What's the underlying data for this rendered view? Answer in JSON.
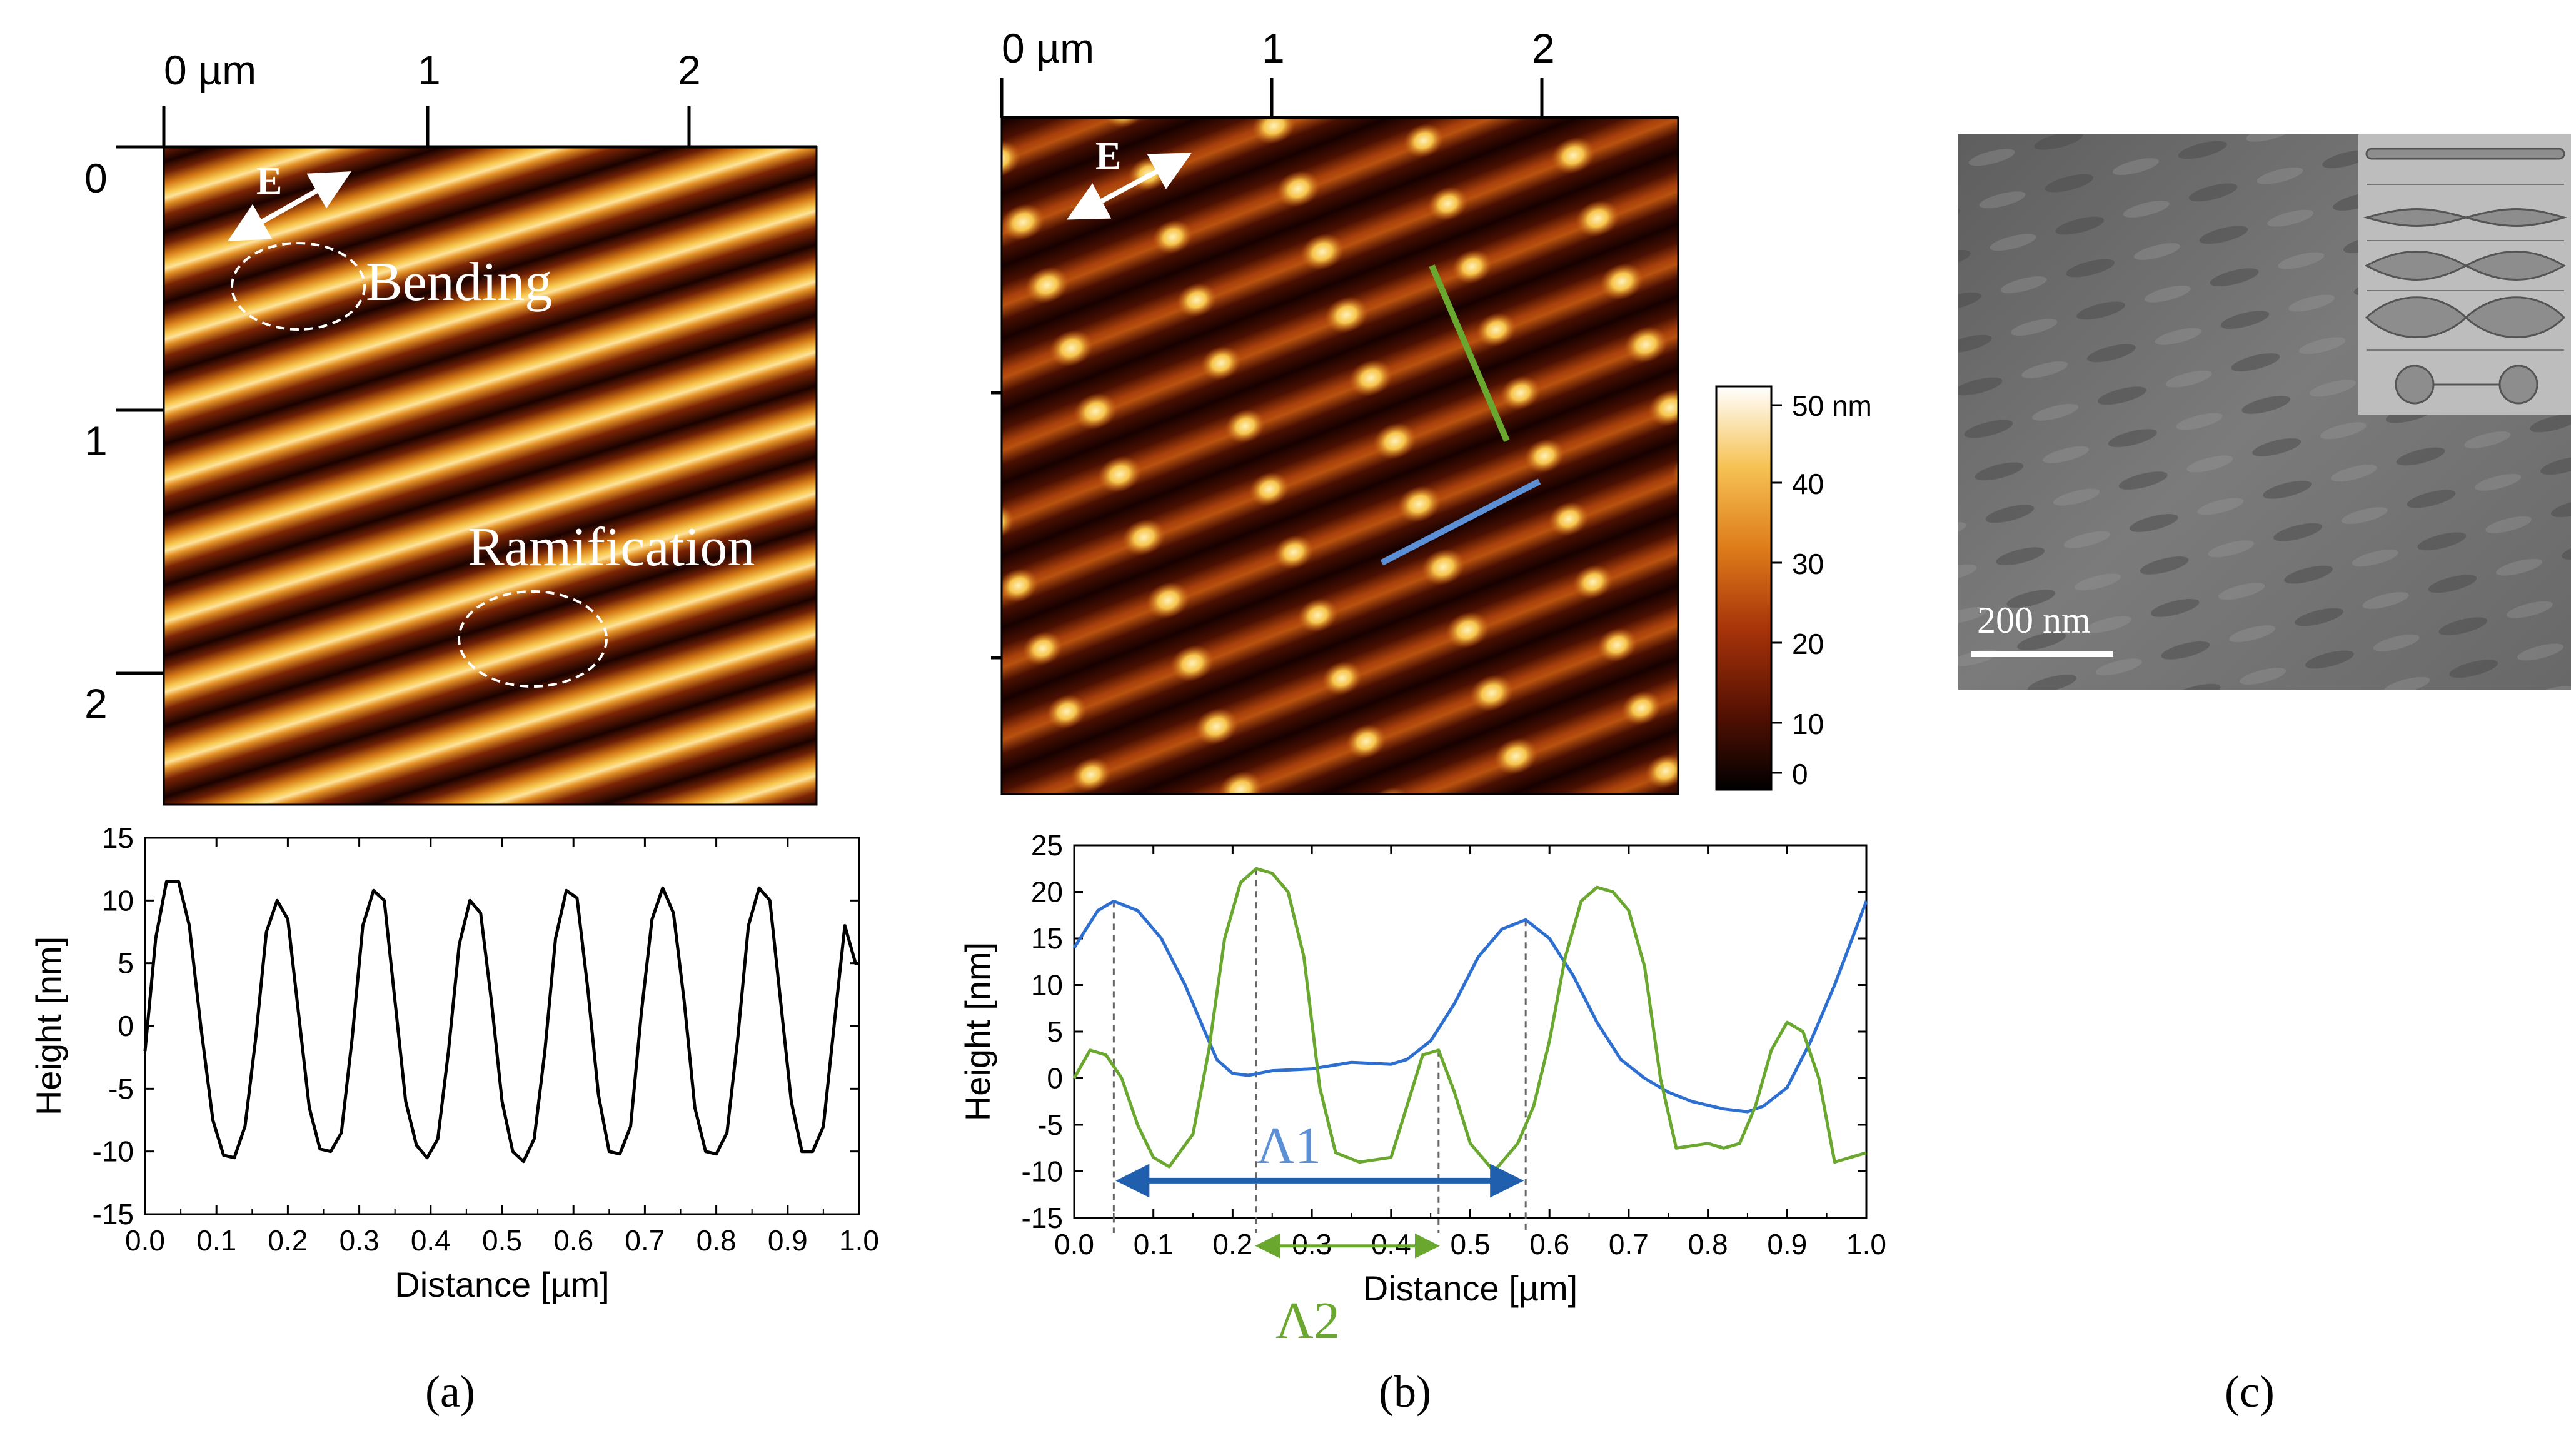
{
  "panel_a": {
    "afm": {
      "axis_top_ticks": [
        "0 µm",
        "1",
        "2"
      ],
      "axis_left_ticks": [
        "0",
        "1",
        "2"
      ],
      "field_label": "E",
      "annotations": [
        "Bending",
        "Ramification"
      ]
    },
    "caption": "(a)"
  },
  "panel_b": {
    "afm": {
      "axis_top_ticks": [
        "0 µm",
        "1",
        "2"
      ],
      "field_label": "E",
      "colorbar_ticks": [
        "50 nm",
        "40",
        "30",
        "20",
        "10",
        "0"
      ]
    },
    "caption": "(b)"
  },
  "panel_c": {
    "scalebar_label": "200 nm",
    "caption": "(c)"
  },
  "chart_data": [
    {
      "type": "line",
      "panel": "a",
      "xlabel": "Distance [µm]",
      "ylabel": "Height [nm]",
      "xlim": [
        0.0,
        1.0
      ],
      "ylim": [
        -15,
        15
      ],
      "xticks": [
        "0.0",
        "0.1",
        "0.2",
        "0.3",
        "0.4",
        "0.5",
        "0.6",
        "0.7",
        "0.8",
        "0.9",
        "1.0"
      ],
      "yticks": [
        "15",
        "10",
        "5",
        "0",
        "-5",
        "-10",
        "-15"
      ],
      "series": [
        {
          "name": "profile",
          "color": "#000000",
          "x": [
            0.0,
            0.015,
            0.03,
            0.047,
            0.062,
            0.078,
            0.095,
            0.11,
            0.125,
            0.14,
            0.155,
            0.17,
            0.185,
            0.2,
            0.215,
            0.23,
            0.245,
            0.26,
            0.275,
            0.29,
            0.305,
            0.32,
            0.335,
            0.35,
            0.365,
            0.38,
            0.395,
            0.41,
            0.425,
            0.44,
            0.455,
            0.47,
            0.485,
            0.5,
            0.515,
            0.53,
            0.545,
            0.56,
            0.575,
            0.59,
            0.605,
            0.62,
            0.635,
            0.65,
            0.665,
            0.68,
            0.695,
            0.71,
            0.725,
            0.74,
            0.755,
            0.77,
            0.785,
            0.8,
            0.815,
            0.83,
            0.845,
            0.86,
            0.875,
            0.89,
            0.905,
            0.92,
            0.935,
            0.95,
            0.965,
            0.98,
            0.995,
            1.0
          ],
          "y": [
            -2,
            7,
            11.5,
            11.5,
            8,
            0,
            -7.5,
            -10.3,
            -10.5,
            -8,
            -1,
            7.5,
            10,
            8.5,
            1,
            -6.5,
            -9.8,
            -10,
            -8.5,
            -1,
            8,
            10.8,
            10,
            2,
            -6,
            -9.5,
            -10.5,
            -9,
            -2,
            6.5,
            10,
            9,
            2,
            -6,
            -10,
            -10.8,
            -9,
            -2,
            7,
            10.8,
            10.2,
            3,
            -5.5,
            -10,
            -10.2,
            -8,
            1,
            8.5,
            11,
            9,
            2,
            -6.5,
            -10,
            -10.2,
            -8.5,
            -1,
            8,
            11,
            10,
            2,
            -6,
            -10,
            -10,
            -8,
            0,
            8,
            5,
            5
          ]
        }
      ]
    },
    {
      "type": "line",
      "panel": "b",
      "xlabel": "Distance [µm]",
      "ylabel": "Height [nm]",
      "xlim": [
        0.0,
        1.0
      ],
      "ylim": [
        -15,
        25
      ],
      "xticks": [
        "0.0",
        "0.1",
        "0.2",
        "0.3",
        "0.4",
        "0.5",
        "0.6",
        "0.7",
        "0.8",
        "0.9",
        "1.0"
      ],
      "yticks": [
        "25",
        "20",
        "15",
        "10",
        "5",
        "0",
        "-5",
        "-10",
        "-15"
      ],
      "annotations": [
        {
          "label": "Λ1",
          "from": 0.05,
          "to": 0.57,
          "y": -11,
          "color": "#1f5fae"
        },
        {
          "label": "Λ2",
          "from": 0.23,
          "to": 0.46,
          "y": -18,
          "color": "#6aa72f"
        }
      ],
      "series": [
        {
          "name": "blue",
          "color": "#2d6fd1",
          "x": [
            0.0,
            0.03,
            0.05,
            0.08,
            0.11,
            0.14,
            0.16,
            0.18,
            0.2,
            0.22,
            0.25,
            0.3,
            0.35,
            0.4,
            0.42,
            0.45,
            0.48,
            0.51,
            0.54,
            0.57,
            0.6,
            0.63,
            0.66,
            0.69,
            0.72,
            0.75,
            0.78,
            0.82,
            0.85,
            0.87,
            0.9,
            0.93,
            0.96,
            1.0
          ],
          "y": [
            14,
            18,
            19,
            18,
            15,
            10,
            6,
            2,
            0.5,
            0.3,
            0.8,
            1,
            1.7,
            1.5,
            2,
            4,
            8,
            13,
            16,
            17,
            15,
            11,
            6,
            2,
            0,
            -1.5,
            -2.5,
            -3.3,
            -3.6,
            -3,
            -1,
            4,
            10,
            19
          ]
        },
        {
          "name": "green",
          "color": "#6aa72f",
          "x": [
            0.0,
            0.02,
            0.04,
            0.06,
            0.08,
            0.1,
            0.12,
            0.15,
            0.17,
            0.19,
            0.21,
            0.23,
            0.25,
            0.27,
            0.29,
            0.31,
            0.33,
            0.36,
            0.4,
            0.42,
            0.44,
            0.46,
            0.48,
            0.5,
            0.53,
            0.56,
            0.58,
            0.6,
            0.62,
            0.64,
            0.66,
            0.68,
            0.7,
            0.72,
            0.74,
            0.76,
            0.8,
            0.82,
            0.84,
            0.86,
            0.88,
            0.9,
            0.92,
            0.94,
            0.96,
            1.0
          ],
          "y": [
            0,
            3,
            2.5,
            0,
            -5,
            -8.5,
            -9.5,
            -6,
            3,
            15,
            21,
            22.5,
            22,
            20,
            13,
            -1,
            -8,
            -9,
            -8.5,
            -3,
            2.5,
            3,
            -1.5,
            -7,
            -10,
            -7,
            -3,
            4,
            13,
            19,
            20.5,
            20,
            18,
            12,
            0,
            -7.5,
            -7,
            -7.5,
            -7,
            -3,
            3,
            6,
            5,
            0,
            -9,
            -8
          ]
        }
      ]
    }
  ]
}
